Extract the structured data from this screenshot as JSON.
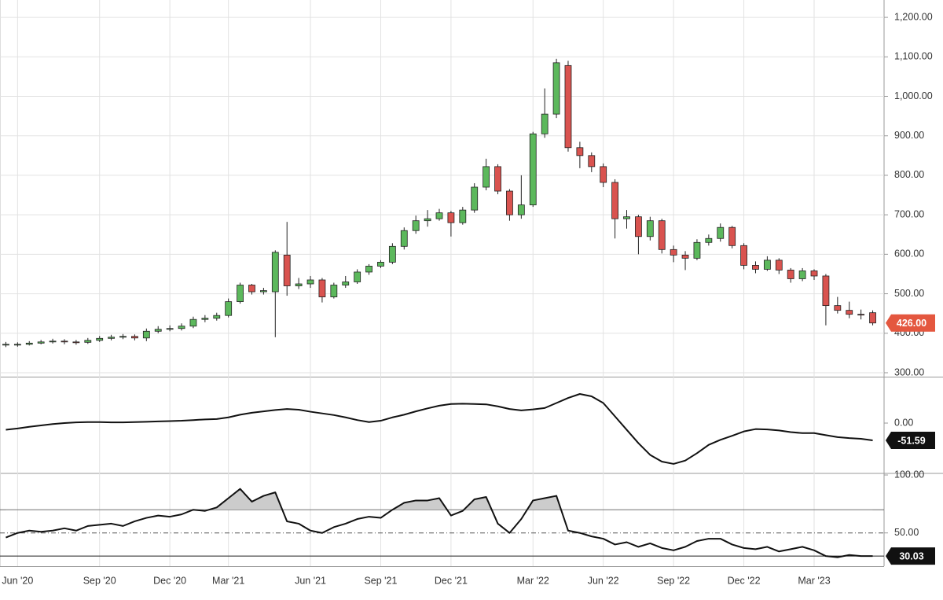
{
  "chart_data": [
    {
      "type": "candlestick",
      "open": [
        370,
        372,
        372,
        375,
        378,
        380,
        378,
        377,
        382,
        387,
        390,
        392,
        388,
        405,
        410,
        412,
        418,
        435,
        438,
        445,
        480,
        522,
        505,
        505,
        598,
        520,
        525,
        535,
        492,
        522,
        530,
        555,
        570,
        580,
        620,
        660,
        685,
        690,
        705,
        680,
        712,
        770,
        822,
        760,
        700,
        725,
        905,
        955,
        1078,
        870,
        850,
        822,
        782,
        690,
        695,
        645,
        685,
        612,
        598,
        590,
        630,
        640,
        668,
        622,
        572,
        562,
        585,
        560,
        538,
        558,
        545,
        470,
        458,
        448,
        452
      ],
      "high": [
        378,
        377,
        380,
        383,
        386,
        385,
        383,
        388,
        393,
        396,
        398,
        397,
        412,
        418,
        420,
        425,
        442,
        446,
        452,
        488,
        528,
        525,
        515,
        610,
        682,
        540,
        545,
        540,
        528,
        545,
        562,
        575,
        585,
        628,
        668,
        698,
        712,
        715,
        710,
        720,
        780,
        842,
        828,
        765,
        800,
        910,
        1020,
        1095,
        1090,
        885,
        858,
        830,
        790,
        712,
        700,
        695,
        690,
        622,
        608,
        638,
        650,
        678,
        672,
        628,
        582,
        595,
        590,
        565,
        565,
        562,
        550,
        492,
        480,
        460,
        458
      ],
      "low": [
        365,
        366,
        369,
        372,
        374,
        372,
        371,
        373,
        378,
        382,
        385,
        382,
        380,
        400,
        405,
        407,
        413,
        428,
        432,
        440,
        475,
        498,
        498,
        390,
        495,
        512,
        515,
        478,
        488,
        515,
        525,
        548,
        565,
        575,
        612,
        652,
        670,
        685,
        645,
        675,
        705,
        762,
        752,
        685,
        690,
        720,
        895,
        945,
        860,
        818,
        808,
        770,
        640,
        665,
        600,
        635,
        602,
        580,
        560,
        585,
        622,
        632,
        615,
        562,
        552,
        558,
        550,
        528,
        532,
        535,
        420,
        450,
        438,
        435,
        420
      ],
      "close": [
        372,
        372,
        375,
        378,
        380,
        378,
        377,
        382,
        387,
        390,
        392,
        388,
        405,
        410,
        412,
        418,
        435,
        438,
        445,
        480,
        522,
        505,
        508,
        605,
        520,
        525,
        535,
        492,
        522,
        530,
        555,
        570,
        580,
        620,
        660,
        685,
        690,
        705,
        680,
        712,
        770,
        822,
        760,
        700,
        725,
        905,
        955,
        1085,
        870,
        850,
        822,
        782,
        690,
        695,
        645,
        685,
        612,
        598,
        590,
        630,
        640,
        668,
        622,
        572,
        562,
        585,
        560,
        538,
        558,
        545,
        470,
        458,
        448,
        446,
        426
      ],
      "up_color": "#5cb85c",
      "down_color": "#d9534f",
      "ylim": [
        292,
        1244
      ],
      "yticks": [
        {
          "value": 300,
          "label": "300.00"
        },
        {
          "value": 400,
          "label": "400.00"
        },
        {
          "value": 500,
          "label": "500.00"
        },
        {
          "value": 600,
          "label": "600.00"
        },
        {
          "value": 700,
          "label": "700.00"
        },
        {
          "value": 800,
          "label": "800.00"
        },
        {
          "value": 900,
          "label": "900.00"
        },
        {
          "value": 1000,
          "label": "1,000.00"
        },
        {
          "value": 1100,
          "label": "1,100.00"
        },
        {
          "value": 1200,
          "label": "1,200.00"
        }
      ],
      "grid": true,
      "last_value_label": "426.00",
      "last_value_color": "#e4573f"
    },
    {
      "type": "line",
      "values": [
        -20,
        -16,
        -11,
        -7,
        -3,
        0,
        2,
        3,
        3,
        2,
        2,
        3,
        4,
        5,
        6,
        7,
        9,
        11,
        12,
        17,
        25,
        31,
        35,
        39,
        42,
        40,
        34,
        29,
        24,
        17,
        9,
        3,
        7,
        17,
        25,
        35,
        44,
        52,
        57,
        58,
        57,
        56,
        50,
        42,
        38,
        41,
        45,
        60,
        75,
        87,
        80,
        60,
        20,
        -20,
        -60,
        -95,
        -115,
        -122,
        -112,
        -90,
        -65,
        -50,
        -38,
        -25,
        -18,
        -19,
        -22,
        -27,
        -30,
        -30,
        -36,
        -42,
        -45,
        -47,
        -51.59
      ],
      "color": "#111111",
      "ylim": [
        -148,
        134
      ],
      "yticks": [
        {
          "value": 0,
          "label": "0.00"
        }
      ],
      "last_value_label": "-51.59",
      "last_value_color": "#111111"
    },
    {
      "type": "line",
      "categories": [
        null,
        "Jun '20",
        null,
        null,
        null,
        null,
        null,
        null,
        "Sep '20",
        null,
        null,
        null,
        null,
        null,
        "Dec '20",
        null,
        null,
        null,
        null,
        "Mar '21",
        null,
        null,
        null,
        null,
        null,
        null,
        "Jun '21",
        null,
        null,
        null,
        null,
        null,
        "Sep '21",
        null,
        null,
        null,
        null,
        null,
        "Dec '21",
        null,
        null,
        null,
        null,
        null,
        null,
        "Mar '22",
        null,
        null,
        null,
        null,
        null,
        "Jun '22",
        null,
        null,
        null,
        null,
        null,
        "Sep '22",
        null,
        null,
        null,
        null,
        null,
        "Dec '22",
        null,
        null,
        null,
        null,
        null,
        "Mar '23",
        null,
        null,
        null,
        null,
        null
      ],
      "values": [
        46,
        50,
        52,
        51,
        52,
        54,
        52,
        56,
        57,
        58,
        56,
        60,
        63,
        65,
        64,
        66,
        70,
        69,
        72,
        80,
        88,
        77,
        82,
        85,
        60,
        58,
        52,
        50,
        55,
        58,
        62,
        64,
        63,
        70,
        76,
        78,
        78,
        80,
        65,
        69,
        79,
        81,
        58,
        50,
        62,
        78,
        80,
        82,
        52,
        50,
        47,
        45,
        40,
        42,
        38,
        41,
        37,
        35,
        38,
        43,
        45,
        45,
        40,
        37,
        36,
        38,
        34,
        36,
        38,
        35,
        30,
        29,
        31,
        30,
        30.03
      ],
      "color": "#111111",
      "ylim": [
        21.3,
        100.7
      ],
      "yticks": [
        {
          "value": 100,
          "label": "100.00"
        },
        {
          "value": 50,
          "label": "50.00"
        }
      ],
      "reference_lines": [
        70,
        50,
        30
      ],
      "fill_above": 70,
      "fill_color": "#cccccc",
      "last_value_label": "30.03",
      "last_value_color": "#111111"
    }
  ]
}
